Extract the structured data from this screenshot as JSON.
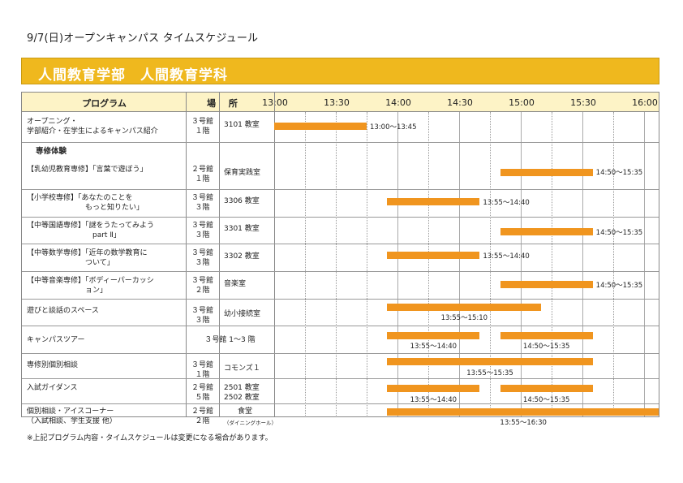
{
  "title": "9/7(日)オープンキャンパス タイムスケジュール",
  "banner": "人間教育学部　人間教育学科",
  "header": {
    "program": "プログラム",
    "place": "場 所",
    "times": [
      "13:00",
      "13:30",
      "14:00",
      "14:30",
      "15:00",
      "15:30",
      "16:00"
    ]
  },
  "section_label": "専修体験",
  "rows": [
    {
      "program": "オープニング・\n学部紹介・在学生によるキャンパス紹介",
      "building": "３号館\n１階",
      "room": "3101 教室",
      "bars": [
        {
          "start": "13:00",
          "end": "13:45",
          "label": "13:00～13:45"
        }
      ]
    },
    {
      "program": "【乳幼児教育専修】「言葉で遊ぼう」",
      "building": "２号館\n１階",
      "room": "保育実践室",
      "bars": [
        {
          "start": "14:50",
          "end": "15:35",
          "label": "14:50～15:35"
        }
      ]
    },
    {
      "program": "【小学校専修】「あなたのことを\n　　　　　　　　もっと知りたい」",
      "building": "３号館\n３階",
      "room": "3306 教室",
      "bars": [
        {
          "start": "13:55",
          "end": "14:40",
          "label": "13:55～14:40"
        }
      ]
    },
    {
      "program": "【中等国語専修】「謎をうたってみよう\n　　　　　　　　　part Ⅱ」",
      "building": "３号館\n３階",
      "room": "3301 教室",
      "bars": [
        {
          "start": "14:50",
          "end": "15:35",
          "label": "14:50～15:35"
        }
      ]
    },
    {
      "program": "【中等数学専修】「近年の数学教育に\n　　　　　　　　ついて」",
      "building": "３号館\n３階",
      "room": "3302 教室",
      "bars": [
        {
          "start": "13:55",
          "end": "14:40",
          "label": "13:55～14:40"
        }
      ]
    },
    {
      "program": "【中等音楽専修】「ボディーパーカッシ\n　　　　　　　　ョン」",
      "building": "３号館\n２階",
      "room": "音楽室",
      "bars": [
        {
          "start": "14:50",
          "end": "15:35",
          "label": "14:50～15:35"
        }
      ]
    },
    {
      "program": "遊びと談話のスペース",
      "building": "３号館\n３階",
      "room": "幼小接続室",
      "bars": [
        {
          "start": "13:55",
          "end": "15:10",
          "label": "13:55～15:10"
        }
      ]
    },
    {
      "program": "キャンパスツアー",
      "building": "３号館 1～3 階",
      "room": "",
      "bars": [
        {
          "start": "13:55",
          "end": "14:40",
          "label": "13:55～14:40"
        },
        {
          "start": "14:50",
          "end": "15:35",
          "label": "14:50～15:35"
        }
      ]
    },
    {
      "program": "専修別個別相談",
      "building": "３号館\n１階",
      "room": "コモンズ１",
      "bars": [
        {
          "start": "13:55",
          "end": "15:35",
          "label": "13:55～15:35"
        }
      ]
    },
    {
      "program": "入試ガイダンス",
      "building": "２号館\n５階",
      "room": "2501 教室\n2502 教室",
      "bars": [
        {
          "start": "13:55",
          "end": "14:40",
          "label": "13:55～14:40"
        },
        {
          "start": "14:50",
          "end": "15:35",
          "label": "14:50～15:35"
        }
      ]
    },
    {
      "program": "個別相談・アイスコーナー\n（入試相談、学生支援 他）",
      "building": "２号館\n２階",
      "room": "食堂",
      "room_sub": "（ダイニングホール）",
      "bars": [
        {
          "start": "13:55",
          "end": "16:30",
          "label": "13:55～16:30"
        }
      ]
    }
  ],
  "note": "※上記プログラム内容・タイムスケジュールは変更になる場合があります。"
}
